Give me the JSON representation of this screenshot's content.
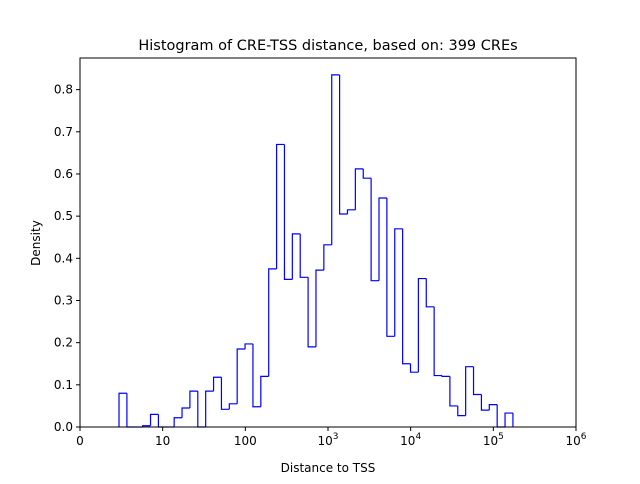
{
  "chart_data": {
    "type": "histogram",
    "title": "Histogram of CRE-TSS distance, based on: 399 CREs",
    "xlabel": "Distance to TSS",
    "ylabel": "Density",
    "xscale": "symlog",
    "xlim_log10": [
      0,
      6
    ],
    "ylim": [
      0,
      0.875
    ],
    "line_color": "#0000ff",
    "bin_start_log10": 0.472,
    "bin_width_log10": 0.0953,
    "densities": [
      0.08,
      0,
      0,
      0.003,
      0.03,
      0,
      0,
      0.022,
      0.045,
      0.085,
      0,
      0.085,
      0.118,
      0.042,
      0.055,
      0.185,
      0.197,
      0.048,
      0.12,
      0.375,
      0.67,
      0.35,
      0.458,
      0.355,
      0.19,
      0.372,
      0.432,
      0.835,
      0.505,
      0.515,
      0.612,
      0.59,
      0.347,
      0.543,
      0.215,
      0.47,
      0.15,
      0.13,
      0.352,
      0.285,
      0.122,
      0.12,
      0.05,
      0.027,
      0.143,
      0.077,
      0.04,
      0.053,
      0,
      0.033
    ],
    "yticks": [
      "0.0",
      "0.1",
      "0.2",
      "0.3",
      "0.4",
      "0.5",
      "0.6",
      "0.7",
      "0.8"
    ],
    "xticks": [
      {
        "pos": 0,
        "base": "0",
        "exp": ""
      },
      {
        "pos": 1,
        "base": "10",
        "exp": ""
      },
      {
        "pos": 2,
        "base": "100",
        "exp": ""
      },
      {
        "pos": 3,
        "base": "10",
        "exp": "3"
      },
      {
        "pos": 4,
        "base": "10",
        "exp": "4"
      },
      {
        "pos": 5,
        "base": "10",
        "exp": "5"
      },
      {
        "pos": 6,
        "base": "10",
        "exp": "6"
      }
    ]
  }
}
